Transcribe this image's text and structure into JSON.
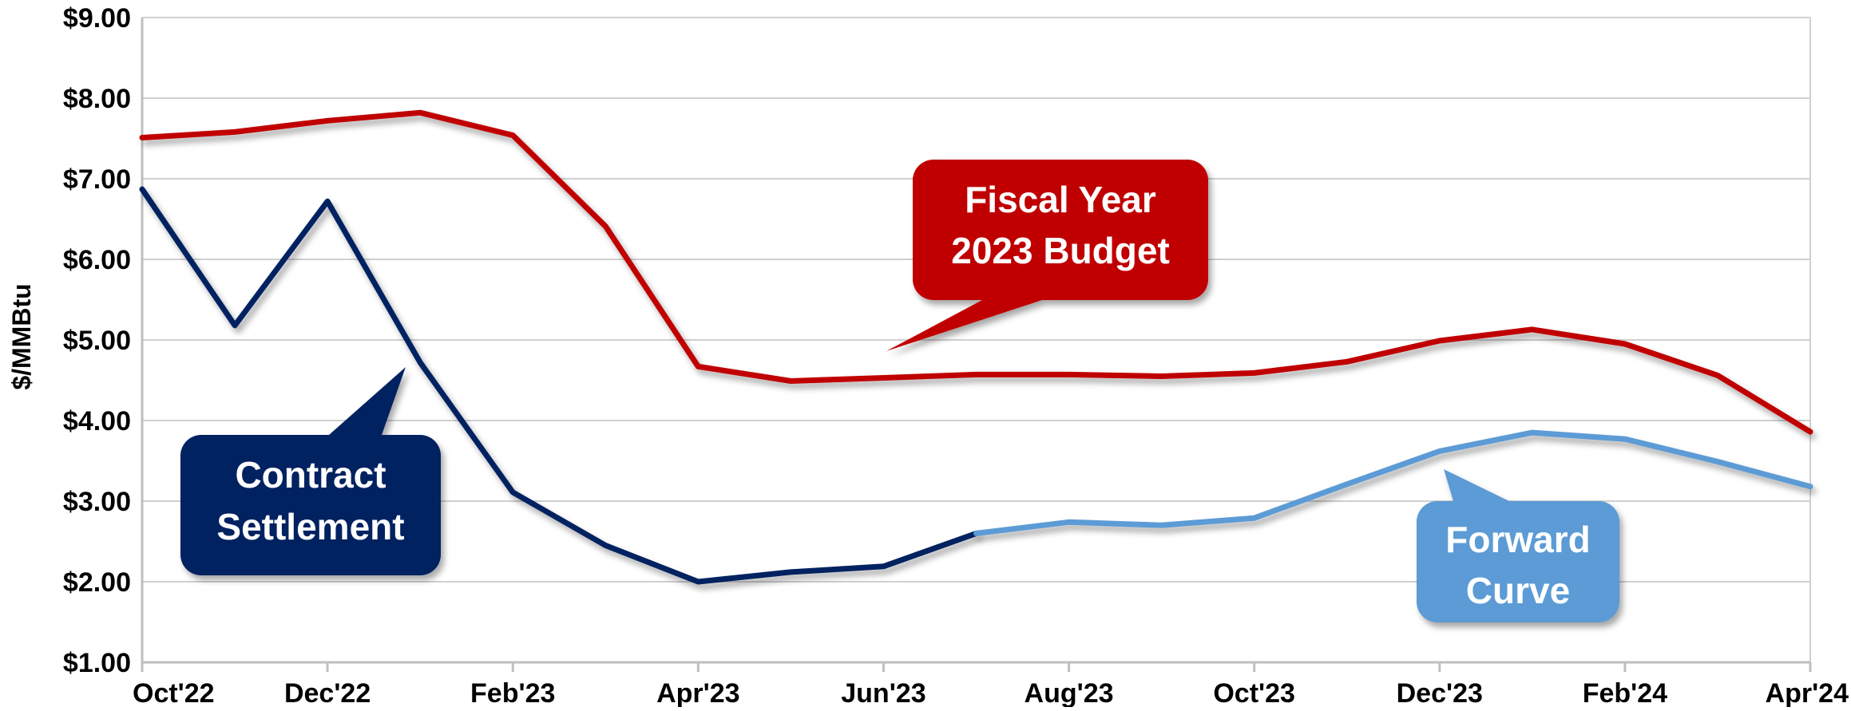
{
  "chart_data": {
    "type": "line",
    "ylabel": "$/MMBtu",
    "xlabel": "",
    "ylim": [
      1.0,
      9.0
    ],
    "y_ticks": [
      "$1.00",
      "$2.00",
      "$3.00",
      "$4.00",
      "$5.00",
      "$6.00",
      "$7.00",
      "$8.00",
      "$9.00"
    ],
    "y_tick_values": [
      1,
      2,
      3,
      4,
      5,
      6,
      7,
      8,
      9
    ],
    "x": [
      "Oct'22",
      "Nov'22",
      "Dec'22",
      "Jan'23",
      "Feb'23",
      "Mar'23",
      "Apr'23",
      "May'23",
      "Jun'23",
      "Jul'23",
      "Aug'23",
      "Sep'23",
      "Oct'23",
      "Nov'23",
      "Dec'23",
      "Jan'24",
      "Feb'24",
      "Mar'24",
      "Apr'24"
    ],
    "x_tick_labels": [
      "Oct'22",
      "Dec'22",
      "Feb'23",
      "Apr'23",
      "Jun'23",
      "Aug'23",
      "Oct'23",
      "Dec'23",
      "Feb'24",
      "Apr'24"
    ],
    "grid": true,
    "series": [
      {
        "name": "Fiscal Year 2023 Budget",
        "color": "#c00000",
        "values": [
          7.51,
          7.58,
          7.72,
          7.82,
          7.54,
          6.41,
          4.67,
          4.49,
          4.53,
          4.57,
          4.57,
          4.55,
          4.59,
          4.73,
          4.99,
          5.13,
          4.95,
          4.56,
          3.86
        ]
      },
      {
        "name": "Contract Settlement",
        "color": "#002060",
        "values": [
          6.87,
          5.18,
          6.72,
          4.72,
          3.11,
          2.45,
          2.0,
          2.12,
          2.19,
          2.6,
          null,
          null,
          null,
          null,
          null,
          null,
          null,
          null,
          null
        ]
      },
      {
        "name": "Forward Curve",
        "color": "#5b9bd5",
        "values": [
          null,
          null,
          null,
          null,
          null,
          null,
          null,
          null,
          null,
          2.6,
          2.74,
          2.7,
          2.79,
          3.21,
          3.62,
          3.85,
          3.77,
          3.49,
          3.18
        ]
      }
    ],
    "annotations": [
      {
        "line1": "Fiscal Year",
        "line2": "2023 Budget",
        "fill": "#c00000"
      },
      {
        "line1": "Contract",
        "line2": "Settlement",
        "fill": "#002060"
      },
      {
        "line1": "Forward",
        "line2": "Curve",
        "fill": "#5b9bd5"
      }
    ]
  }
}
